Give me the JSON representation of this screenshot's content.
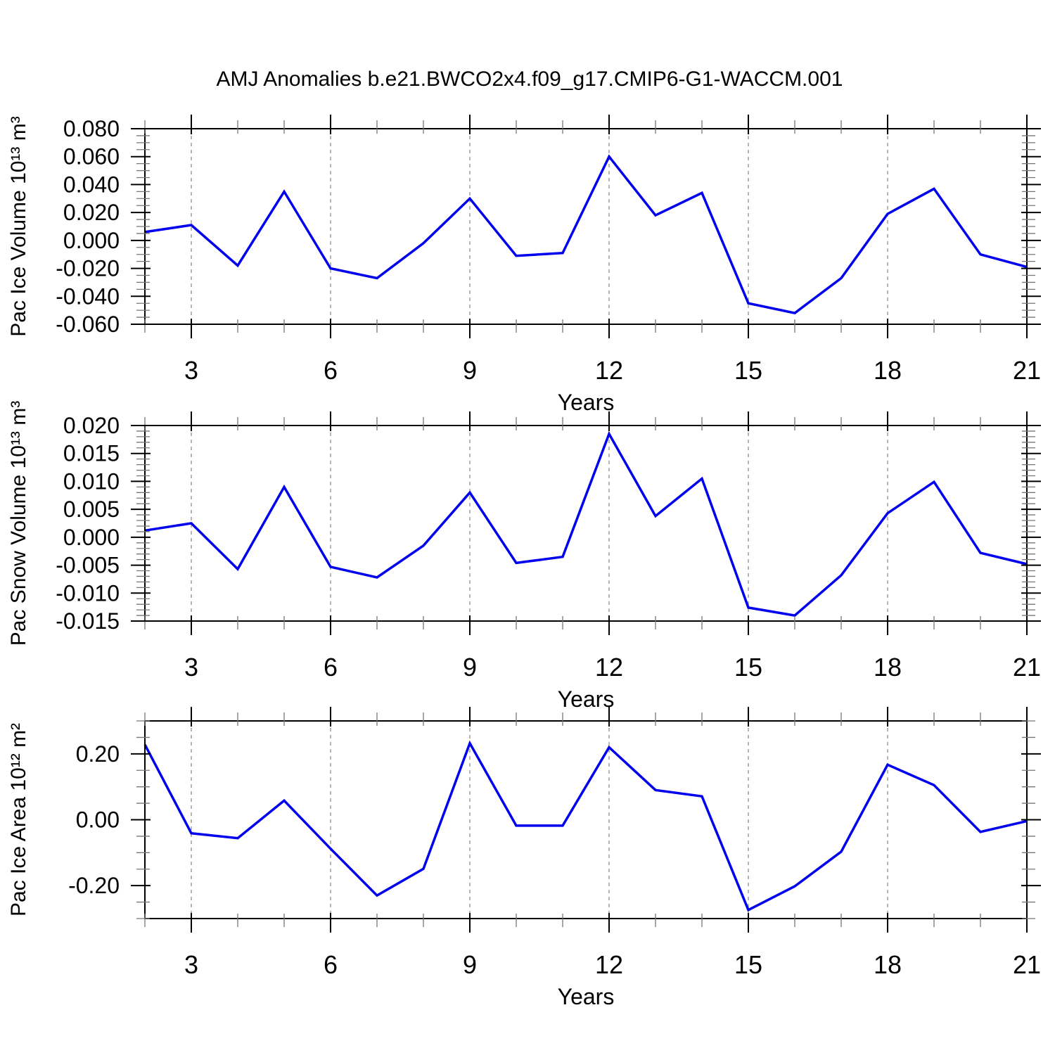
{
  "page": {
    "title": "AMJ Anomalies b.e21.BWCO2x4.f09_g17.CMIP6-G1-WACCM.001",
    "background": "#ffffff"
  },
  "colors": {
    "line": "#0000ee",
    "axis": "#000000",
    "grid": "#909090",
    "minor_tick": "#777777",
    "text": "#000000"
  },
  "chart_data": [
    {
      "type": "line",
      "series_name": "Pac Ice Volume anomaly",
      "ylabel": "Pac Ice Volume 10¹³ m³",
      "xlabel": "Years",
      "x": [
        2,
        3,
        4,
        5,
        6,
        7,
        8,
        9,
        10,
        11,
        12,
        13,
        14,
        15,
        16,
        17,
        18,
        19,
        20,
        21
      ],
      "values": [
        0.006,
        0.011,
        -0.018,
        0.035,
        -0.02,
        -0.027,
        -0.002,
        0.03,
        -0.011,
        -0.009,
        0.06,
        0.018,
        0.034,
        -0.045,
        -0.052,
        -0.027,
        0.019,
        0.037,
        -0.01,
        -0.019
      ],
      "xlim": [
        2,
        21
      ],
      "ylim": [
        -0.06,
        0.08
      ],
      "xticks_major": [
        3,
        6,
        9,
        12,
        15,
        18,
        21
      ],
      "xminor_step": 1,
      "yticks_major": [
        0.08,
        0.06,
        0.04,
        0.02,
        0.0,
        -0.02,
        -0.04,
        -0.06
      ],
      "yminor_step": 0.005,
      "ytick_decimals": 3,
      "grid_years": [
        3,
        6,
        9,
        12,
        15,
        18
      ],
      "grid_on": "vertical-dashed",
      "legend": "none"
    },
    {
      "type": "line",
      "series_name": "Pac Snow Volume anomaly",
      "ylabel": "Pac Snow Volume 10¹³ m³",
      "xlabel": "Years",
      "x": [
        2,
        3,
        4,
        5,
        6,
        7,
        8,
        9,
        10,
        11,
        12,
        13,
        14,
        15,
        16,
        17,
        18,
        19,
        20,
        21
      ],
      "values": [
        0.0012,
        0.0025,
        -0.0057,
        0.009,
        -0.0053,
        -0.0072,
        -0.0015,
        0.008,
        -0.0046,
        -0.0035,
        0.0185,
        0.0038,
        0.0105,
        -0.0126,
        -0.014,
        -0.0068,
        0.0043,
        0.0099,
        -0.0028,
        -0.0048
      ],
      "xlim": [
        2,
        21
      ],
      "ylim": [
        -0.015,
        0.02
      ],
      "xticks_major": [
        3,
        6,
        9,
        12,
        15,
        18,
        21
      ],
      "xminor_step": 1,
      "yticks_major": [
        0.02,
        0.015,
        0.01,
        0.005,
        0.0,
        -0.005,
        -0.01,
        -0.015
      ],
      "yminor_step": 0.001,
      "ytick_decimals": 3,
      "grid_years": [
        3,
        6,
        9,
        12,
        15,
        18
      ],
      "grid_on": "vertical-dashed",
      "legend": "none"
    },
    {
      "type": "line",
      "series_name": "Pac Ice Area anomaly",
      "ylabel": "Pac Ice Area 10¹² m²",
      "xlabel": "Years",
      "x": [
        2,
        3,
        4,
        5,
        6,
        7,
        8,
        9,
        10,
        11,
        12,
        13,
        14,
        15,
        16,
        17,
        18,
        19,
        20,
        21
      ],
      "values": [
        0.228,
        -0.041,
        -0.056,
        0.058,
        -0.088,
        -0.23,
        -0.149,
        0.232,
        -0.018,
        -0.018,
        0.22,
        0.09,
        0.071,
        -0.274,
        -0.202,
        -0.097,
        0.167,
        0.105,
        -0.037,
        -0.004
      ],
      "xlim": [
        2,
        21
      ],
      "ylim": [
        -0.3,
        0.3
      ],
      "xticks_major": [
        3,
        6,
        9,
        12,
        15,
        18,
        21
      ],
      "xminor_step": 1,
      "yticks_major": [
        0.2,
        0.0,
        -0.2
      ],
      "yminor_step": 0.05,
      "ytick_decimals": 2,
      "grid_years": [
        3,
        6,
        9,
        12,
        15,
        18
      ],
      "grid_on": "vertical-dashed",
      "legend": "none"
    }
  ]
}
